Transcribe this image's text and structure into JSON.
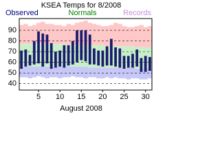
{
  "chart_data": {
    "type": "range-bar",
    "title": "KSEA Temps for 8/2008",
    "x_label": "August 2008",
    "x": [
      1,
      2,
      3,
      4,
      5,
      6,
      7,
      8,
      9,
      10,
      11,
      12,
      13,
      14,
      15,
      16,
      17,
      18,
      19,
      20,
      21,
      22,
      23,
      24,
      25,
      26,
      27,
      28,
      29,
      30,
      31
    ],
    "xlim": [
      0.5,
      31.5
    ],
    "xticks": [
      5,
      10,
      15,
      20,
      25,
      30
    ],
    "ylim": [
      34,
      101
    ],
    "yticks": [
      40,
      50,
      60,
      70,
      80,
      90
    ],
    "grid": true,
    "series": [
      {
        "name": "Observed",
        "color": "#1a1a6e",
        "text_color": "#000080",
        "high": [
          71,
          72,
          67,
          80,
          89,
          87,
          86,
          78,
          70,
          71,
          76,
          76,
          80,
          90,
          90,
          90,
          86,
          73,
          71,
          71,
          75,
          82,
          74,
          73,
          66,
          66,
          68,
          72,
          64,
          66,
          65
        ],
        "low": [
          54,
          56,
          57,
          58,
          59,
          56,
          59,
          54,
          55,
          56,
          55,
          57,
          58,
          60,
          62,
          61,
          58,
          58,
          57,
          56,
          57,
          57,
          56,
          55,
          54,
          55,
          55,
          56,
          51,
          51,
          52
        ]
      },
      {
        "name": "Normals",
        "color": "#c8f0c8",
        "text_color": "#008000",
        "high": [
          77,
          77,
          77,
          77,
          77,
          77,
          77,
          77,
          77,
          77,
          77,
          76,
          76,
          76,
          76,
          76,
          76,
          76,
          76,
          76,
          75,
          75,
          75,
          75,
          75,
          75,
          75,
          74,
          74,
          74,
          74
        ],
        "low": [
          56,
          56,
          56,
          56,
          56,
          56,
          56,
          56,
          56,
          56,
          56,
          56,
          56,
          56,
          56,
          56,
          55,
          55,
          55,
          55,
          55,
          55,
          55,
          55,
          55,
          55,
          55,
          54,
          54,
          54,
          54
        ]
      },
      {
        "name": "Records",
        "color": "#ffc8c8",
        "low_color": "#c8c8f8",
        "text_color": "#c890d8",
        "high": [
          95,
          96,
          94,
          95,
          97,
          98,
          96,
          96,
          95,
          95,
          94,
          96,
          95,
          97,
          98,
          99,
          97,
          96,
          95,
          94,
          94,
          95,
          97,
          96,
          94,
          93,
          93,
          94,
          95,
          93,
          94
        ],
        "low": [
          46,
          46,
          45,
          46,
          47,
          46,
          45,
          46,
          46,
          45,
          46,
          46,
          47,
          46,
          46,
          45,
          46,
          46,
          45,
          45,
          46,
          45,
          46,
          45,
          45,
          44,
          45,
          45,
          44,
          44,
          45
        ]
      }
    ]
  }
}
